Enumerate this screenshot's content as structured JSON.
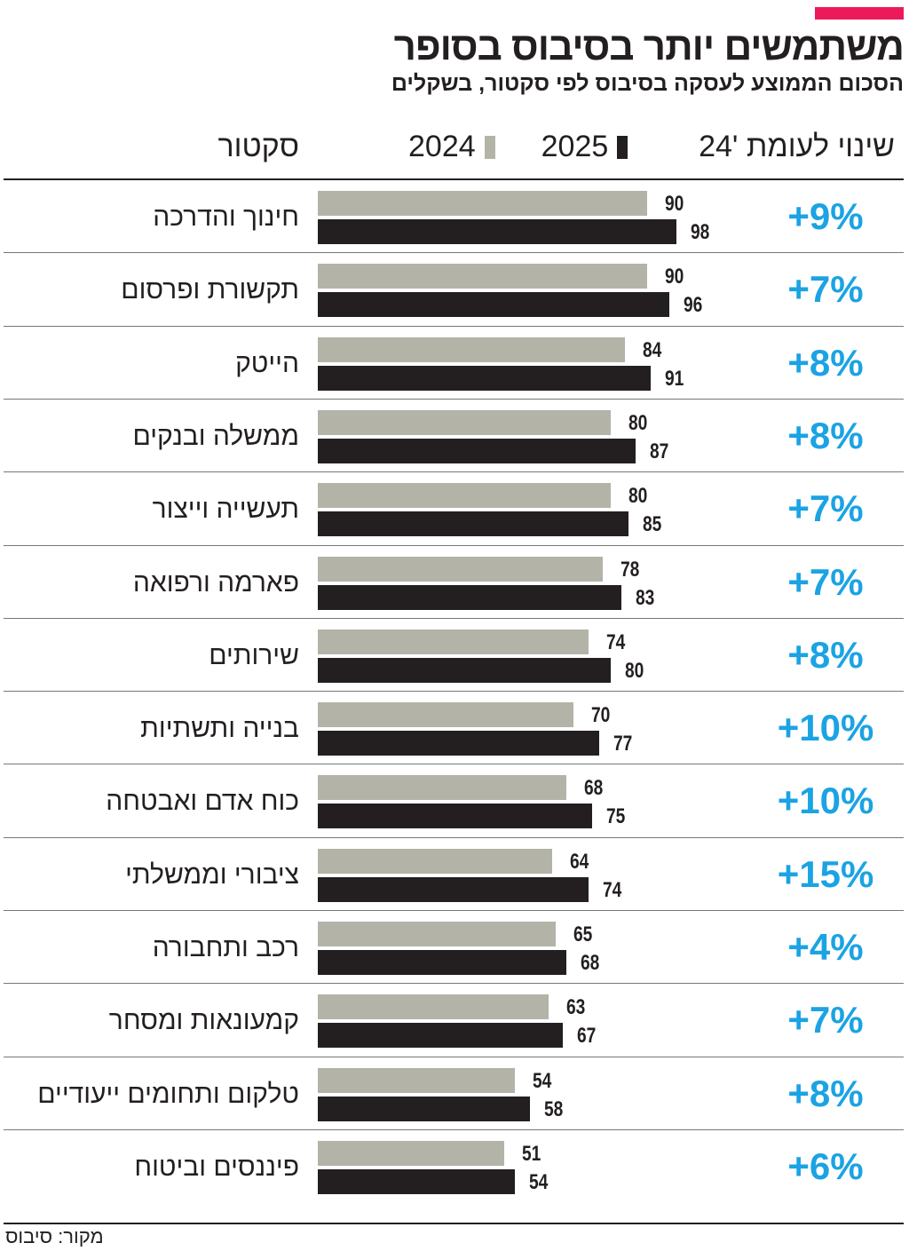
{
  "title": "משתמשים יותר בסיבוס בסופר",
  "subtitle": "הסכום הממוצע לעסקה בסיבוס לפי סקטור, בשקלים",
  "source": "מקור: סיבוס",
  "colors": {
    "accent": "#ec1a5b",
    "series_2024": "#b3b3a7",
    "series_2025": "#231f20",
    "change": "#1ba3e3"
  },
  "chart_data": {
    "type": "bar",
    "orientation": "horizontal",
    "headers": {
      "sector": "סקטור",
      "change": "שינוי לעומת '24"
    },
    "categories": [
      "חינוך והדרכה",
      "תקשורת ופרסום",
      "הייטק",
      "ממשלה ובנקים",
      "תעשייה וייצור",
      "פארמה ורפואה",
      "שירותים",
      "בנייה ותשתיות",
      "כוח אדם ואבטחה",
      "ציבורי וממשלתי",
      "רכב ותחבורה",
      "קמעונאות ומסחר",
      "טלקום ותחומים ייעודיים",
      "פיננסים וביטוח"
    ],
    "series": [
      {
        "name": "2024",
        "color": "#b3b3a7",
        "values": [
          90,
          90,
          84,
          80,
          80,
          78,
          74,
          70,
          68,
          64,
          65,
          63,
          54,
          51
        ]
      },
      {
        "name": "2025",
        "color": "#231f20",
        "values": [
          98,
          96,
          91,
          87,
          85,
          83,
          80,
          77,
          75,
          74,
          68,
          67,
          58,
          54
        ]
      }
    ],
    "change": [
      "+9%",
      "+7%",
      "+8%",
      "+8%",
      "+7%",
      "+7%",
      "+8%",
      "+10%",
      "+10%",
      "+15%",
      "+4%",
      "+7%",
      "+8%",
      "+6%"
    ],
    "legend": "top",
    "grid": false
  }
}
